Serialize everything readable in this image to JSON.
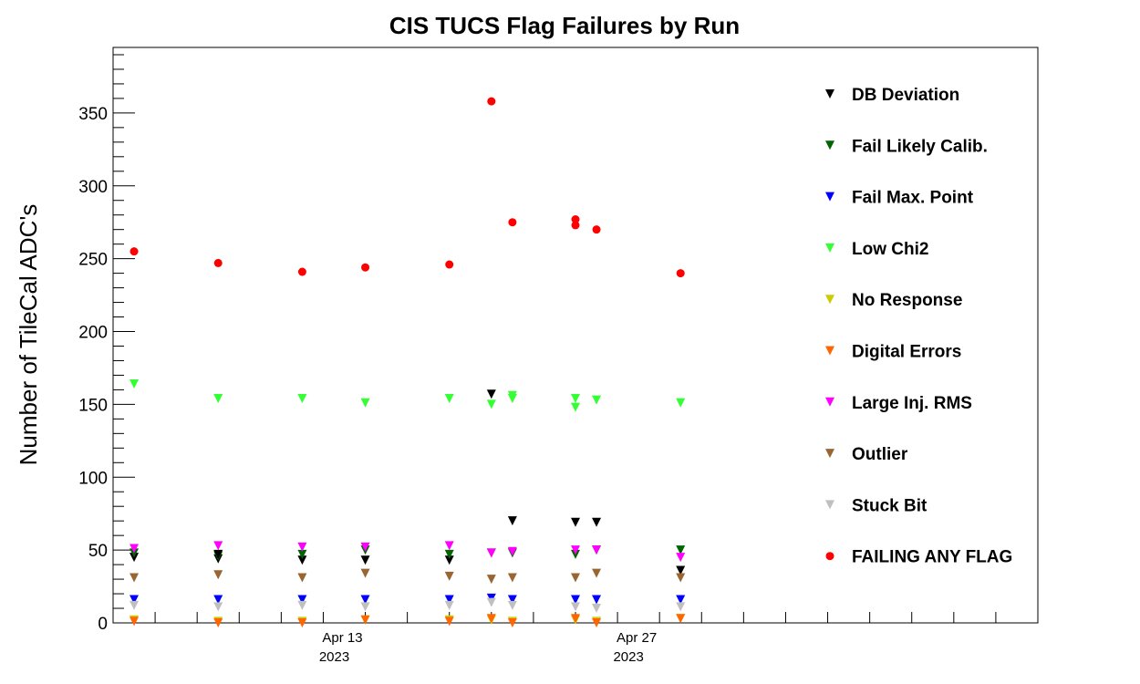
{
  "chart_data": {
    "type": "scatter",
    "title": "CIS TUCS Flag Failures by Run",
    "xlabel": "",
    "ylabel": "Number of TileCal ADC's",
    "xlim": [
      "2023-04-02",
      "2023-05-16"
    ],
    "ylim": [
      0,
      395
    ],
    "x_ticks": [
      {
        "x": "2023-04-13",
        "label": "Apr 13",
        "sublabel": "2023"
      },
      {
        "x": "2023-04-27",
        "label": "Apr 27",
        "sublabel": "2023"
      }
    ],
    "y_ticks": [
      0,
      50,
      100,
      150,
      200,
      250,
      300,
      350
    ],
    "grid": false,
    "legend_position": "right",
    "x": [
      "2023-04-03",
      "2023-04-07",
      "2023-04-11",
      "2023-04-14",
      "2023-04-18",
      "2023-04-20",
      "2023-04-21",
      "2023-04-24",
      "2023-04-25",
      "2023-04-29"
    ],
    "series": [
      {
        "name": "DB Deviation",
        "color": "#000000",
        "marker": "triangle-down",
        "values": [
          45,
          44,
          43,
          43,
          43,
          157,
          70,
          69,
          69,
          36
        ]
      },
      {
        "name": "Fail Likely Calib.",
        "color": "#006400",
        "marker": "triangle-down",
        "values": [
          48,
          46,
          47,
          50,
          47,
          48,
          48,
          47,
          50,
          50
        ]
      },
      {
        "name": "Fail Max. Point",
        "color": "#0000ff",
        "marker": "triangle-down",
        "values": [
          16,
          16,
          16,
          16,
          16,
          17,
          16,
          16,
          16,
          16
        ]
      },
      {
        "name": "Low Chi2",
        "color": "#33ff33",
        "marker": "triangle-down",
        "values": [
          164,
          154,
          154,
          151,
          154,
          150,
          156,
          154,
          153,
          151
        ]
      },
      {
        "name": "No Response",
        "color": "#cccc00",
        "marker": "triangle-down",
        "values": [
          2,
          1,
          1,
          2,
          2,
          2,
          1,
          2,
          1,
          3
        ]
      },
      {
        "name": "Digital Errors",
        "color": "#ff6600",
        "marker": "triangle-down",
        "values": [
          1,
          0,
          0,
          2,
          1,
          3,
          0,
          3,
          0,
          3
        ]
      },
      {
        "name": "Large Inj. RMS",
        "color": "#ff00ff",
        "marker": "triangle-down",
        "values": [
          51,
          53,
          52,
          52,
          53,
          48,
          49,
          50,
          50,
          45
        ]
      },
      {
        "name": "Outlier",
        "color": "#996633",
        "marker": "triangle-down",
        "values": [
          31,
          33,
          31,
          34,
          32,
          30,
          31,
          31,
          34,
          31
        ]
      },
      {
        "name": "Stuck Bit",
        "color": "#c0c0c0",
        "marker": "triangle-down",
        "values": [
          12,
          11,
          12,
          11,
          12,
          14,
          12,
          11,
          10,
          11
        ]
      },
      {
        "name": "FAILING ANY FLAG",
        "color": "#ff0000",
        "marker": "circle",
        "values": [
          255,
          247,
          241,
          244,
          246,
          358,
          275,
          273,
          270,
          240
        ]
      }
    ],
    "extra_points": [
      {
        "series": "FAILING ANY FLAG",
        "x": "2023-04-24",
        "y": 277
      },
      {
        "series": "Low Chi2",
        "x": "2023-04-24",
        "y": 148
      },
      {
        "series": "Low Chi2",
        "x": "2023-04-21",
        "y": 154
      },
      {
        "series": "DB Deviation",
        "x": "2023-04-07",
        "y": 47
      }
    ]
  }
}
